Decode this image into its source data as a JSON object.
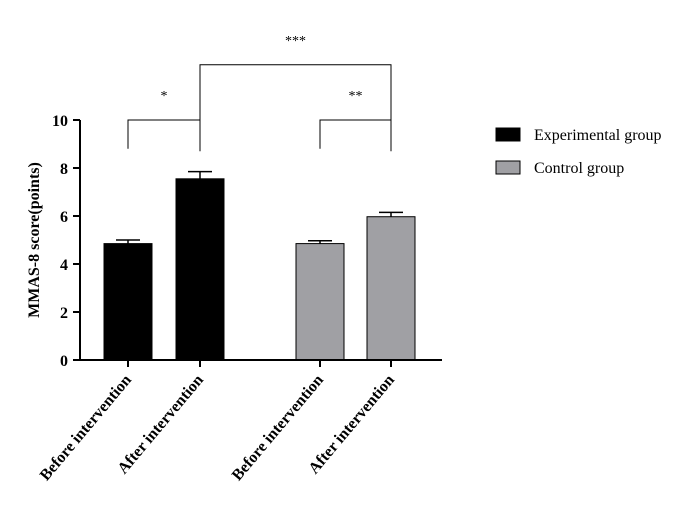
{
  "chart_data": {
    "type": "bar",
    "title": "",
    "xlabel": "",
    "ylabel": "MMAS-8 score(points)",
    "ylim": [
      0,
      10
    ],
    "yticks": [
      0,
      2,
      4,
      6,
      8,
      10
    ],
    "grid": false,
    "legend_position": "right",
    "categories": [
      "Before intervention",
      "After intervention",
      "Before intervention",
      "After intervention"
    ],
    "bars": [
      {
        "category": "Before intervention",
        "series": "Experimental group",
        "value": 4.85,
        "error": 0.15
      },
      {
        "category": "After intervention",
        "series": "Experimental group",
        "value": 7.55,
        "error": 0.3
      },
      {
        "category": "Before intervention",
        "series": "Control group",
        "value": 4.85,
        "error": 0.12
      },
      {
        "category": "After intervention",
        "series": "Control group",
        "value": 5.97,
        "error": 0.18
      }
    ],
    "series": [
      {
        "name": "Experimental group",
        "color": "#000000"
      },
      {
        "name": "Control group",
        "color": "#a0a0a4"
      }
    ],
    "significance": [
      {
        "from": 0,
        "to": 1,
        "label": "*",
        "bracket_y": 10
      },
      {
        "from": 2,
        "to": 3,
        "label": "**",
        "bracket_y": 10
      },
      {
        "from": 1,
        "to": 3,
        "label": "***",
        "bracket_y": 12.3
      }
    ]
  }
}
